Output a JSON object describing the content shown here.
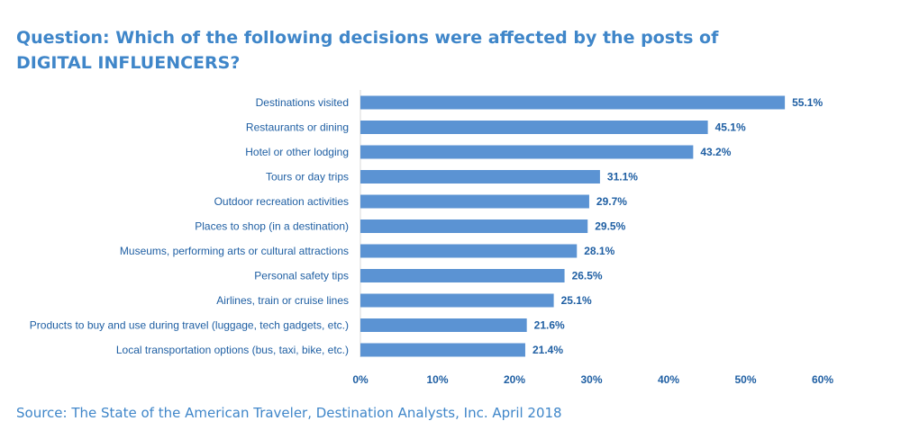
{
  "title_lines": [
    "Question: Which of the following decisions were affected by the posts of",
    "DIGITAL INFLUENCERS?"
  ],
  "source": "Source: The State of the American Traveler, Destination Analysts, Inc. April 2018",
  "colors": {
    "bar": "#5b93d3",
    "text": "#1f5fa3",
    "title": "#3f86c9",
    "axis": "#d9d9d9"
  },
  "chart_data": {
    "type": "bar",
    "orientation": "horizontal",
    "categories": [
      "Destinations visited",
      "Restaurants or dining",
      "Hotel or other lodging",
      "Tours or day trips",
      "Outdoor recreation activities",
      "Places to shop (in a destination)",
      "Museums, performing arts or cultural attractions",
      "Personal safety tips",
      "Airlines, train or cruise lines",
      "Products to buy and use during travel (luggage, tech gadgets, etc.)",
      "Local transportation options (bus, taxi, bike, etc.)"
    ],
    "values": [
      55.1,
      45.1,
      43.2,
      31.1,
      29.7,
      29.5,
      28.1,
      26.5,
      25.1,
      21.6,
      21.4
    ],
    "value_labels": [
      "55.1%",
      "45.1%",
      "43.2%",
      "31.1%",
      "29.7%",
      "29.5%",
      "28.1%",
      "26.5%",
      "25.1%",
      "21.6%",
      "21.4%"
    ],
    "xlim": [
      0,
      60
    ],
    "xticks": [
      "0%",
      "10%",
      "20%",
      "30%",
      "40%",
      "50%",
      "60%"
    ],
    "grid": false,
    "legend": "none"
  }
}
